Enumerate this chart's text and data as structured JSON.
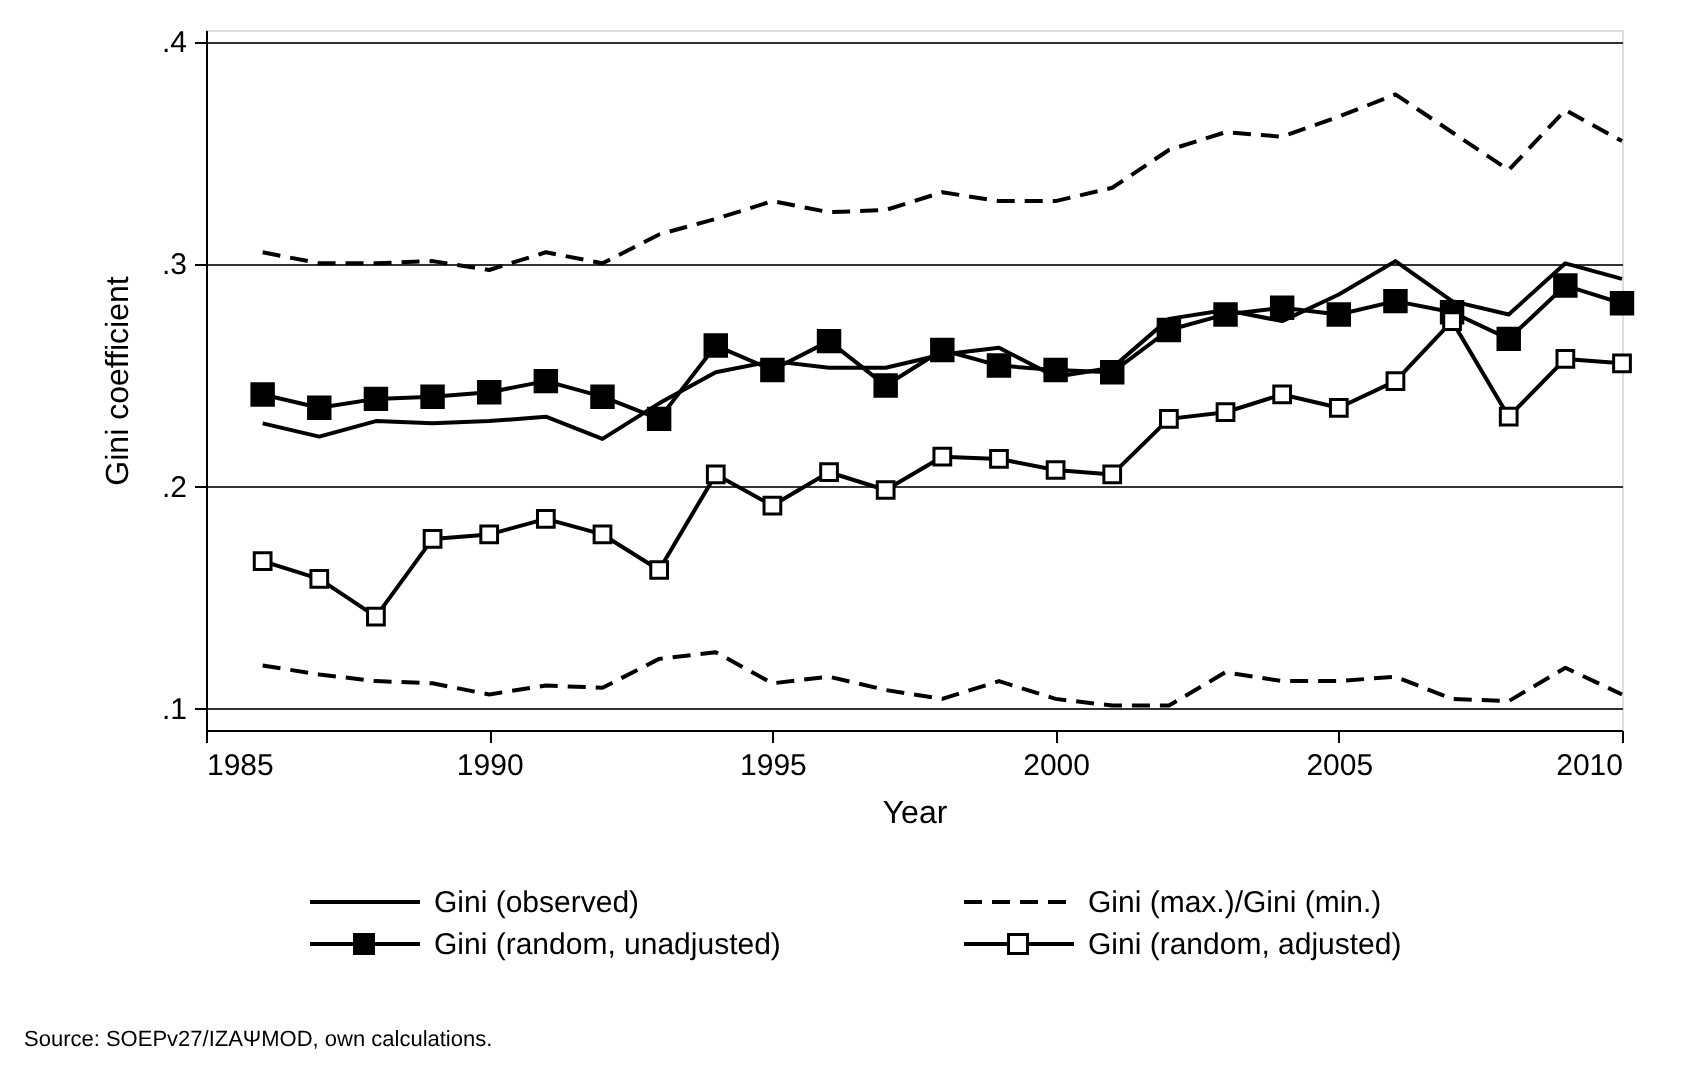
{
  "chart_data": {
    "type": "line",
    "xlabel": "Year",
    "ylabel": "Gini coefficient",
    "x": [
      1986,
      1987,
      1988,
      1989,
      1990,
      1991,
      1992,
      1993,
      1994,
      1995,
      1996,
      1997,
      1998,
      1999,
      2000,
      2001,
      2002,
      2003,
      2004,
      2005,
      2006,
      2007,
      2008,
      2009,
      2010
    ],
    "series": [
      {
        "name": "Gini (observed)",
        "color": "#000000",
        "line_style": "solid",
        "marker": "none",
        "values": [
          0.228,
          0.222,
          0.229,
          0.228,
          0.229,
          0.231,
          0.221,
          0.237,
          0.251,
          0.256,
          0.253,
          0.253,
          0.259,
          0.262,
          0.249,
          0.253,
          0.275,
          0.279,
          0.274,
          0.286,
          0.301,
          0.283,
          0.277,
          0.3,
          0.293
        ]
      },
      {
        "name": "Gini (max.)/Gini (min.)",
        "color": "#000000",
        "line_style": "dashed",
        "marker": "none",
        "values": [
          0.305,
          0.3,
          0.3,
          0.301,
          0.297,
          0.305,
          0.3,
          0.313,
          0.32,
          0.328,
          0.323,
          0.324,
          0.332,
          0.328,
          0.328,
          0.334,
          0.351,
          0.359,
          0.357,
          0.366,
          0.376,
          0.359,
          0.342,
          0.369,
          0.355
        ]
      },
      {
        "name": "Gini (random, unadjusted)",
        "color": "#000000",
        "line_style": "solid",
        "marker": "square",
        "colors": [
          "#000000",
          "#000000",
          "#000000",
          "#000000",
          "#000000",
          "#000000",
          "#000000",
          "#000000",
          "#000000",
          "#000000",
          "#000000",
          "#000000",
          "#000000",
          "#000000",
          "#000000",
          "#000000",
          "#000000",
          "#000000",
          "#000000",
          "#000000",
          "#000000",
          "#000000",
          "#000000",
          "#000000",
          "#000000"
        ],
        "values": [
          0.241,
          0.235,
          0.239,
          0.24,
          0.242,
          0.247,
          0.24,
          0.23,
          0.263,
          0.252,
          0.265,
          0.245,
          0.261,
          0.254,
          0.252,
          0.251,
          0.27,
          0.277,
          0.28,
          0.277,
          0.283,
          0.278,
          0.266,
          0.29,
          0.282
        ]
      },
      {
        "name": "Gini (random, adjusted)",
        "color": "#000000",
        "line_style": "solid",
        "marker": "square",
        "colors": [
          "#ffffff",
          "#ffffff",
          "#ffffff",
          "#ffffff",
          "#ffffff",
          "#ffffff",
          "#ffffff",
          "#ffffff",
          "#ffffff",
          "#ffffff",
          "#ffffff",
          "#ffffff",
          "#ffffff",
          "#ffffff",
          "#ffffff",
          "#ffffff",
          "#ffffff",
          "#ffffff",
          "#ffffff",
          "#ffffff",
          "#ffffff",
          "#ffffff",
          "#ffffff",
          "#ffffff",
          "#ffffff"
        ],
        "values": [
          0.166,
          0.158,
          0.141,
          0.176,
          0.178,
          0.185,
          0.178,
          0.162,
          0.205,
          0.191,
          0.206,
          0.198,
          0.213,
          0.212,
          0.207,
          0.205,
          0.23,
          0.233,
          0.241,
          0.235,
          0.247,
          0.274,
          0.231,
          0.257,
          0.255
        ]
      },
      {
        "color": "#000000",
        "line_style": "dashed",
        "marker": "none",
        "values": [
          0.119,
          0.115,
          0.112,
          0.111,
          0.106,
          0.11,
          0.109,
          0.122,
          0.125,
          0.111,
          0.114,
          0.108,
          0.104,
          0.112,
          0.104,
          0.101,
          0.101,
          0.116,
          0.112,
          0.112,
          0.114,
          0.104,
          0.103,
          0.118,
          0.106
        ]
      }
    ],
    "xlim": [
      1985,
      2010
    ],
    "xticks": [
      1985,
      1990,
      1995,
      2000,
      2005,
      2010
    ],
    "ylim": [
      0.09,
      0.405
    ],
    "yticks": [
      {
        "value": 0.1,
        "label": ".1"
      },
      {
        "value": 0.2,
        "label": ".2"
      },
      {
        "value": 0.3,
        "label": ".3"
      },
      {
        "value": 0.4,
        "label": ".4"
      }
    ],
    "grid": "y",
    "legend": "bottom",
    "annotations": [
      "Source: SOEPv27/IZAΨMOD, own calculations."
    ]
  }
}
